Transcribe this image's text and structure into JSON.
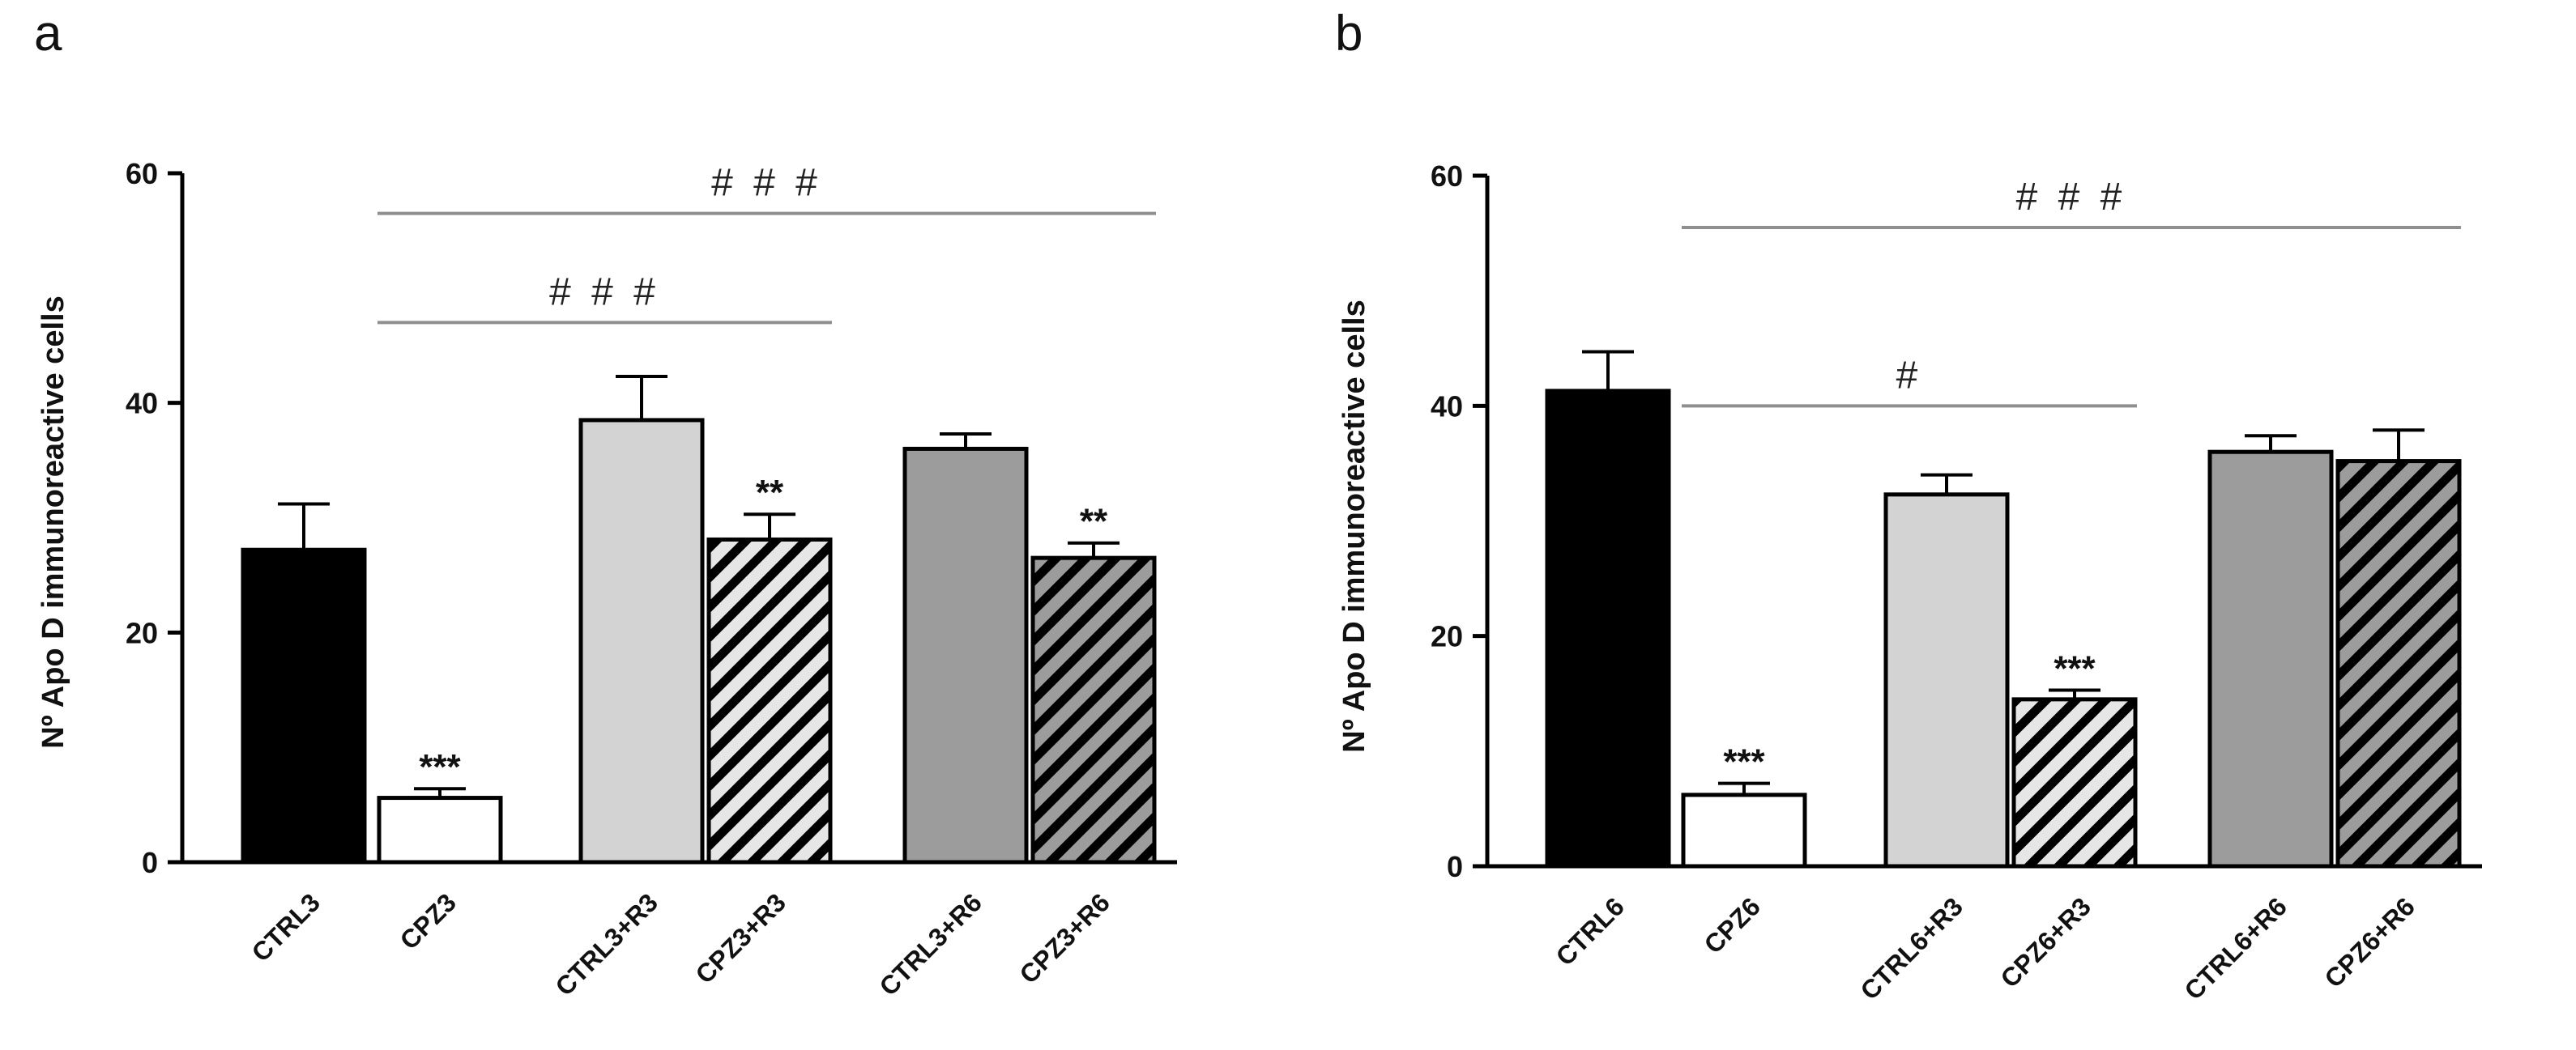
{
  "colors": {
    "axis": "#000000",
    "comparison_line": "#8f8f8f",
    "ctrl": "#000000",
    "cpz": "#ffffff",
    "ctrl_r3": "#d3d3d3",
    "ctrl_r6": "#9c9c9c",
    "cpz_r3_stripe": "#e6e6e6",
    "cpz_r6_stripe": "#9c9c9c"
  },
  "chart_data": [
    {
      "panel": "a",
      "type": "bar",
      "ylabel": "Nº Apo D immunoreactive cells",
      "ylim": [
        0,
        60
      ],
      "yticks": [
        "0",
        "20",
        "40",
        "60"
      ],
      "categories": [
        "CTRL3",
        "CPZ3",
        "CTRL3+R3",
        "CPZ3+R3",
        "CTRL3+R6",
        "CPZ3+R6"
      ],
      "values": [
        27.2,
        5.6,
        38.5,
        28.1,
        36.0,
        26.5
      ],
      "errors": [
        4.0,
        0.8,
        3.8,
        2.2,
        1.3,
        1.3
      ],
      "fills": [
        "black",
        "white",
        "light",
        "stripe-light",
        "gray",
        "stripe-gray"
      ],
      "significance": [
        "",
        "***",
        "",
        "**",
        "",
        "**"
      ],
      "comparisons": [
        {
          "from": 1,
          "to": 5,
          "label": "###",
          "y": 56.5
        },
        {
          "from": 1,
          "to": 3,
          "label": "###",
          "y": 47.0
        }
      ]
    },
    {
      "panel": "b",
      "type": "bar",
      "ylabel": "Nº Apo D immunoreactive cells",
      "ylim": [
        0,
        60
      ],
      "yticks": [
        "0",
        "20",
        "40",
        "60"
      ],
      "categories": [
        "CTRL6",
        "CPZ6",
        "CTRL6+R3",
        "CPZ6+R3",
        "CTRL6+R6",
        "CPZ6+R6"
      ],
      "values": [
        41.3,
        6.2,
        32.3,
        14.5,
        36.0,
        35.2
      ],
      "errors": [
        3.4,
        1.0,
        1.7,
        0.8,
        1.4,
        2.7
      ],
      "fills": [
        "black",
        "white",
        "light",
        "stripe-light",
        "gray",
        "stripe-gray"
      ],
      "significance": [
        "",
        "***",
        "",
        "***",
        "",
        ""
      ],
      "comparisons": [
        {
          "from": 1,
          "to": 5,
          "label": "###",
          "y": 55.5
        },
        {
          "from": 1,
          "to": 3,
          "label": "#",
          "y": 40.0
        }
      ]
    }
  ]
}
